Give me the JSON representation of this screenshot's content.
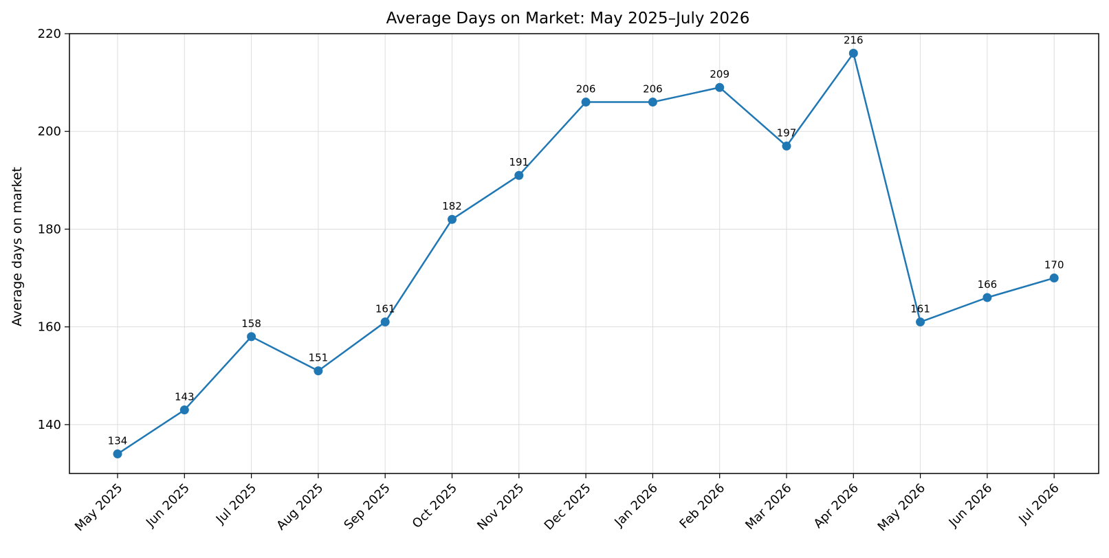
{
  "chart_data": {
    "type": "line",
    "title": "Average Days on Market: May 2025–July 2026",
    "xlabel": "",
    "ylabel": "Average days on market",
    "categories": [
      "May 2025",
      "Jun 2025",
      "Jul 2025",
      "Aug 2025",
      "Sep 2025",
      "Oct 2025",
      "Nov 2025",
      "Dec 2025",
      "Jan 2026",
      "Feb 2026",
      "Mar 2026",
      "Apr 2026",
      "May 2026",
      "Jun 2026",
      "Jul 2026"
    ],
    "series": [
      {
        "values": [
          134,
          143,
          158,
          151,
          161,
          182,
          191,
          206,
          206,
          209,
          197,
          216,
          161,
          166,
          170
        ],
        "color": "#1f77b4"
      }
    ],
    "ylim": [
      130,
      220
    ],
    "yticks": [
      140,
      160,
      180,
      200,
      220
    ],
    "grid": true,
    "legend": "none"
  }
}
